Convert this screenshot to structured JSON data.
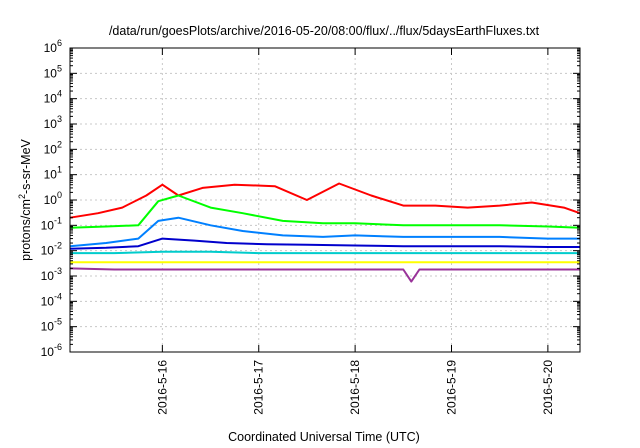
{
  "chart_data": {
    "type": "line",
    "title": "/data/run/goesPlots/archive/2016-05-20/08:00/flux/../flux/5daysEarthFluxes.txt",
    "xlabel": "Coordinated Universal Time (UTC)",
    "ylabel_parts": [
      "protons/cm",
      "2",
      "-s-sr-MeV"
    ],
    "y_scale": "log",
    "ylim": [
      1e-06,
      1000000.0
    ],
    "y_ticks": [
      {
        "base": "10",
        "exp": "-6",
        "value": 1e-06
      },
      {
        "base": "10",
        "exp": "-5",
        "value": 1e-05
      },
      {
        "base": "10",
        "exp": "-4",
        "value": 0.0001
      },
      {
        "base": "10",
        "exp": "-3",
        "value": 0.001
      },
      {
        "base": "10",
        "exp": "-2",
        "value": 0.01
      },
      {
        "base": "10",
        "exp": "-1",
        "value": 0.1
      },
      {
        "base": "10",
        "exp": "0",
        "value": 1
      },
      {
        "base": "10",
        "exp": "1",
        "value": 10
      },
      {
        "base": "10",
        "exp": "2",
        "value": 100
      },
      {
        "base": "10",
        "exp": "3",
        "value": 1000
      },
      {
        "base": "10",
        "exp": "4",
        "value": 10000
      },
      {
        "base": "10",
        "exp": "5",
        "value": 100000
      },
      {
        "base": "10",
        "exp": "6",
        "value": 1000000
      }
    ],
    "xlim": [
      "2016-05-15T01:00",
      "2016-05-20T08:00"
    ],
    "x_ticks": [
      {
        "label": "2016-5-16",
        "value": "2016-05-16T00:00"
      },
      {
        "label": "2016-5-17",
        "value": "2016-05-17T00:00"
      },
      {
        "label": "2016-5-18",
        "value": "2016-05-18T00:00"
      },
      {
        "label": "2016-5-19",
        "value": "2016-05-19T00:00"
      },
      {
        "label": "2016-5-20",
        "value": "2016-05-20T00:00"
      }
    ],
    "grid": true,
    "legend": "none",
    "series": [
      {
        "color": "#ff0000",
        "x": [
          "2016-05-15T01:00",
          "2016-05-15T08:00",
          "2016-05-15T14:00",
          "2016-05-15T20:00",
          "2016-05-16T00:00",
          "2016-05-16T04:00",
          "2016-05-16T10:00",
          "2016-05-16T18:00",
          "2016-05-17T04:00",
          "2016-05-17T12:00",
          "2016-05-17T20:00",
          "2016-05-18T04:00",
          "2016-05-18T12:00",
          "2016-05-18T20:00",
          "2016-05-19T04:00",
          "2016-05-19T12:00",
          "2016-05-19T20:00",
          "2016-05-20T04:00",
          "2016-05-20T08:00"
        ],
        "y": [
          0.2,
          0.3,
          0.5,
          1.5,
          4.0,
          1.5,
          3.0,
          4.0,
          3.5,
          1.0,
          4.5,
          1.5,
          0.6,
          0.6,
          0.5,
          0.6,
          0.8,
          0.5,
          0.3
        ]
      },
      {
        "color": "#00ff00",
        "x": [
          "2016-05-15T01:00",
          "2016-05-15T10:00",
          "2016-05-15T18:00",
          "2016-05-15T23:00",
          "2016-05-16T04:00",
          "2016-05-16T12:00",
          "2016-05-16T20:00",
          "2016-05-17T06:00",
          "2016-05-17T16:00",
          "2016-05-18T00:00",
          "2016-05-18T12:00",
          "2016-05-19T00:00",
          "2016-05-19T12:00",
          "2016-05-20T00:00",
          "2016-05-20T08:00"
        ],
        "y": [
          0.08,
          0.09,
          0.1,
          0.9,
          1.5,
          0.5,
          0.3,
          0.15,
          0.12,
          0.12,
          0.1,
          0.1,
          0.1,
          0.09,
          0.08
        ]
      },
      {
        "color": "#0080ff",
        "x": [
          "2016-05-15T01:00",
          "2016-05-15T10:00",
          "2016-05-15T18:00",
          "2016-05-15T23:00",
          "2016-05-16T04:00",
          "2016-05-16T12:00",
          "2016-05-16T20:00",
          "2016-05-17T06:00",
          "2016-05-17T16:00",
          "2016-05-18T00:00",
          "2016-05-18T12:00",
          "2016-05-19T00:00",
          "2016-05-19T12:00",
          "2016-05-20T00:00",
          "2016-05-20T08:00"
        ],
        "y": [
          0.015,
          0.02,
          0.03,
          0.15,
          0.2,
          0.1,
          0.06,
          0.04,
          0.035,
          0.04,
          0.035,
          0.035,
          0.035,
          0.03,
          0.03
        ]
      },
      {
        "color": "#0000cc",
        "x": [
          "2016-05-15T01:00",
          "2016-05-15T10:00",
          "2016-05-15T18:00",
          "2016-05-16T00:00",
          "2016-05-16T08:00",
          "2016-05-16T16:00",
          "2016-05-17T02:00",
          "2016-05-17T12:00",
          "2016-05-18T00:00",
          "2016-05-18T12:00",
          "2016-05-19T00:00",
          "2016-05-19T12:00",
          "2016-05-20T00:00",
          "2016-05-20T08:00"
        ],
        "y": [
          0.012,
          0.013,
          0.015,
          0.03,
          0.025,
          0.02,
          0.018,
          0.017,
          0.016,
          0.015,
          0.015,
          0.015,
          0.014,
          0.014
        ]
      },
      {
        "color": "#00cccc",
        "x": [
          "2016-05-15T01:00",
          "2016-05-15T12:00",
          "2016-05-16T00:00",
          "2016-05-16T12:00",
          "2016-05-17T00:00",
          "2016-05-17T12:00",
          "2016-05-18T00:00",
          "2016-05-18T12:00",
          "2016-05-19T00:00",
          "2016-05-19T12:00",
          "2016-05-20T00:00",
          "2016-05-20T08:00"
        ],
        "y": [
          0.008,
          0.008,
          0.009,
          0.009,
          0.008,
          0.008,
          0.008,
          0.008,
          0.008,
          0.008,
          0.008,
          0.008
        ]
      },
      {
        "color": "#ffff00",
        "x": [
          "2016-05-15T01:00",
          "2016-05-15T12:00",
          "2016-05-16T00:00",
          "2016-05-16T12:00",
          "2016-05-17T00:00",
          "2016-05-17T12:00",
          "2016-05-18T00:00",
          "2016-05-18T12:00",
          "2016-05-19T00:00",
          "2016-05-19T12:00",
          "2016-05-20T00:00",
          "2016-05-20T08:00"
        ],
        "y": [
          0.0035,
          0.0035,
          0.0035,
          0.0035,
          0.0035,
          0.0035,
          0.0035,
          0.0035,
          0.0035,
          0.0035,
          0.0035,
          0.0035
        ]
      },
      {
        "color": "#993399",
        "x": [
          "2016-05-15T01:00",
          "2016-05-15T12:00",
          "2016-05-16T00:00",
          "2016-05-16T12:00",
          "2016-05-17T00:00",
          "2016-05-17T12:00",
          "2016-05-18T00:00",
          "2016-05-18T12:00",
          "2016-05-18T14:00",
          "2016-05-18T16:00",
          "2016-05-19T00:00",
          "2016-05-19T12:00",
          "2016-05-20T00:00",
          "2016-05-20T08:00"
        ],
        "y": [
          0.002,
          0.0018,
          0.0018,
          0.0018,
          0.0018,
          0.0018,
          0.0018,
          0.0018,
          0.0006,
          0.0018,
          0.0018,
          0.0018,
          0.0018,
          0.0018
        ]
      }
    ]
  }
}
